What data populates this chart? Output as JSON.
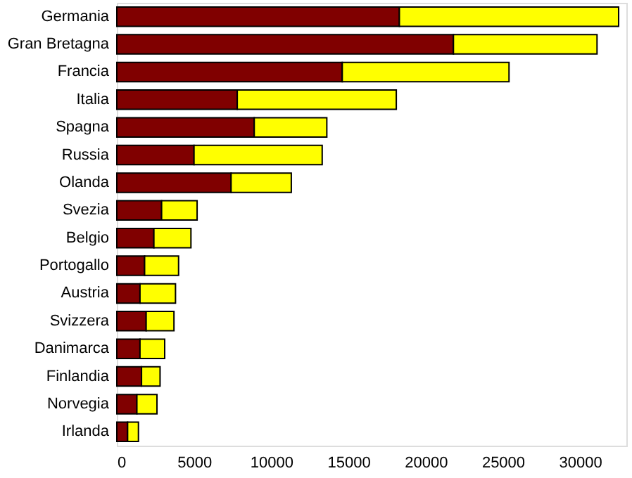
{
  "chart_data": {
    "type": "bar",
    "orientation": "horizontal",
    "stacked": true,
    "categories": [
      "Germania",
      "Gran Bretagna",
      "Francia",
      "Italia",
      "Spagna",
      "Russia",
      "Olanda",
      "Svezia",
      "Belgio",
      "Portogallo",
      "Austria",
      "Svizzera",
      "Danimarca",
      "Finlandia",
      "Norvegia",
      "Irlanda"
    ],
    "series": [
      {
        "color": "#800000",
        "values": [
          18300,
          21800,
          14600,
          7800,
          8900,
          5000,
          7400,
          2900,
          2400,
          1800,
          1500,
          1900,
          1500,
          1600,
          1300,
          700
        ]
      },
      {
        "color": "#ffff00",
        "values": [
          14200,
          9300,
          10800,
          10300,
          4700,
          8300,
          3900,
          2300,
          2400,
          2200,
          2300,
          1800,
          1600,
          1200,
          1300,
          700
        ]
      }
    ],
    "xlim": [
      0,
      33000
    ],
    "xticks": [
      0,
      5000,
      10000,
      15000,
      20000,
      25000,
      30000
    ],
    "grid": false,
    "legend": false
  }
}
